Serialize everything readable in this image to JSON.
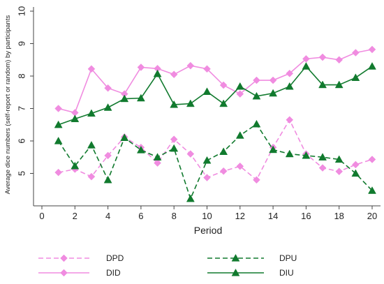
{
  "chart_data": {
    "type": "line",
    "title": "",
    "xlabel": "Period",
    "ylabel": "Average dice numbers (self-report or random) by participants",
    "x": [
      1,
      2,
      3,
      4,
      5,
      6,
      7,
      8,
      9,
      10,
      11,
      12,
      13,
      14,
      15,
      16,
      17,
      18,
      19,
      20
    ],
    "xlim": [
      0,
      20
    ],
    "ylim": [
      4,
      10
    ],
    "xticks": [
      0,
      2,
      4,
      6,
      8,
      10,
      12,
      14,
      16,
      18,
      20
    ],
    "yticks": [
      5,
      6,
      7,
      8,
      9,
      10
    ],
    "grid": false,
    "legend_position": "bottom",
    "series": [
      {
        "name": "DPD",
        "color": "#f08ce0",
        "line_style": "dashed",
        "marker": "diamond",
        "values": [
          5.03,
          5.13,
          4.9,
          5.55,
          6.12,
          5.8,
          5.32,
          6.05,
          5.6,
          4.87,
          5.07,
          5.22,
          4.8,
          5.8,
          6.65,
          5.6,
          5.17,
          5.06,
          5.27,
          5.43
        ]
      },
      {
        "name": "DPU",
        "color": "#117a2e",
        "line_style": "dashed",
        "marker": "triangle",
        "values": [
          6.0,
          5.23,
          5.87,
          4.8,
          6.1,
          5.72,
          5.5,
          5.77,
          4.22,
          5.4,
          5.67,
          6.17,
          6.52,
          5.73,
          5.6,
          5.55,
          5.5,
          5.43,
          5.0,
          4.47
        ]
      },
      {
        "name": "DID",
        "color": "#f08ce0",
        "line_style": "solid",
        "marker": "diamond",
        "values": [
          7.0,
          6.87,
          8.22,
          7.63,
          7.45,
          8.27,
          8.23,
          8.05,
          8.32,
          8.22,
          7.72,
          7.45,
          7.87,
          7.87,
          8.08,
          8.53,
          8.58,
          8.5,
          8.72,
          8.82
        ]
      },
      {
        "name": "DIU",
        "color": "#117a2e",
        "line_style": "solid",
        "marker": "triangle",
        "values": [
          6.5,
          6.68,
          6.85,
          7.03,
          7.3,
          7.32,
          8.07,
          7.12,
          7.15,
          7.52,
          7.15,
          7.68,
          7.38,
          7.47,
          7.68,
          8.3,
          7.73,
          7.73,
          7.95,
          8.3
        ]
      }
    ]
  }
}
